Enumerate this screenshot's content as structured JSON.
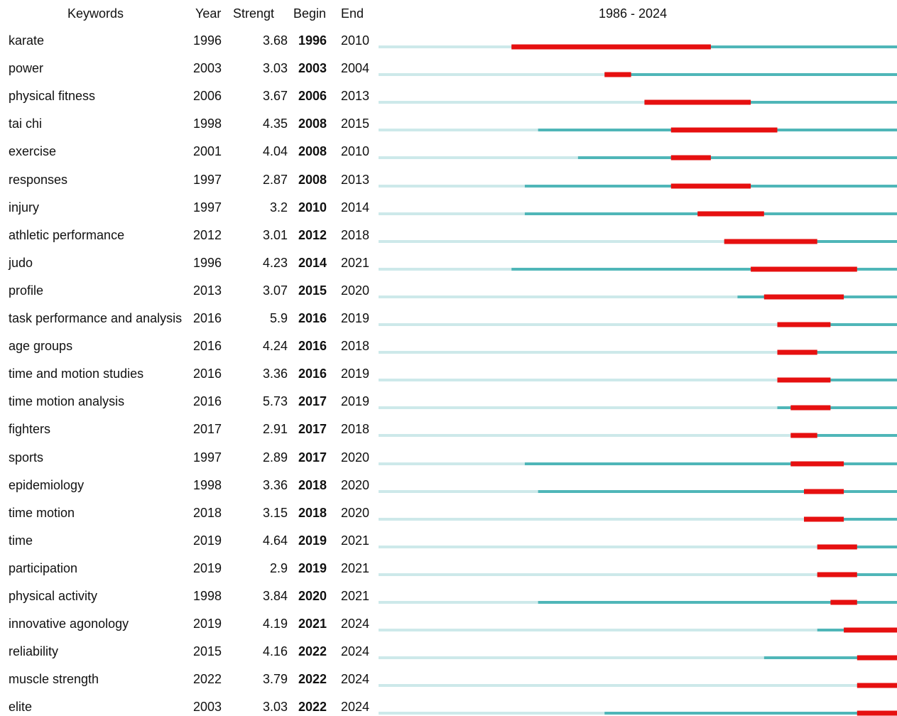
{
  "chart_data": {
    "type": "timeline",
    "headers": {
      "keywords": "Keywords",
      "year": "Year",
      "strength": "Strengt",
      "begin": "Begin",
      "end": "End",
      "range": "1986 - 2024"
    },
    "range": [
      1986,
      2024
    ],
    "colors": {
      "inactive": "#cde9ea",
      "active": "#4fb6b8",
      "burst": "#e61010"
    },
    "rows": [
      {
        "keyword": "karate",
        "year": "1996",
        "strength": "3.68",
        "begin": "1996",
        "end": "2010"
      },
      {
        "keyword": "power",
        "year": "2003",
        "strength": "3.03",
        "begin": "2003",
        "end": "2004"
      },
      {
        "keyword": "physical fitness",
        "year": "2006",
        "strength": "3.67",
        "begin": "2006",
        "end": "2013"
      },
      {
        "keyword": "tai chi",
        "year": "1998",
        "strength": "4.35",
        "begin": "2008",
        "end": "2015"
      },
      {
        "keyword": "exercise",
        "year": "2001",
        "strength": "4.04",
        "begin": "2008",
        "end": "2010"
      },
      {
        "keyword": "responses",
        "year": "1997",
        "strength": "2.87",
        "begin": "2008",
        "end": "2013"
      },
      {
        "keyword": "injury",
        "year": "1997",
        "strength": "3.2",
        "begin": "2010",
        "end": "2014"
      },
      {
        "keyword": "athletic performance",
        "year": "2012",
        "strength": "3.01",
        "begin": "2012",
        "end": "2018"
      },
      {
        "keyword": "judo",
        "year": "1996",
        "strength": "4.23",
        "begin": "2014",
        "end": "2021"
      },
      {
        "keyword": "profile",
        "year": "2013",
        "strength": "3.07",
        "begin": "2015",
        "end": "2020"
      },
      {
        "keyword": "task performance and analysis",
        "year": "2016",
        "strength": "5.9",
        "begin": "2016",
        "end": "2019"
      },
      {
        "keyword": "age groups",
        "year": "2016",
        "strength": "4.24",
        "begin": "2016",
        "end": "2018"
      },
      {
        "keyword": "time and motion studies",
        "year": "2016",
        "strength": "3.36",
        "begin": "2016",
        "end": "2019"
      },
      {
        "keyword": "time motion analysis",
        "year": "2016",
        "strength": "5.73",
        "begin": "2017",
        "end": "2019"
      },
      {
        "keyword": "fighters",
        "year": "2017",
        "strength": "2.91",
        "begin": "2017",
        "end": "2018"
      },
      {
        "keyword": "sports",
        "year": "1997",
        "strength": "2.89",
        "begin": "2017",
        "end": "2020"
      },
      {
        "keyword": "epidemiology",
        "year": "1998",
        "strength": "3.36",
        "begin": "2018",
        "end": "2020"
      },
      {
        "keyword": "time motion",
        "year": "2018",
        "strength": "3.15",
        "begin": "2018",
        "end": "2020"
      },
      {
        "keyword": "time",
        "year": "2019",
        "strength": "4.64",
        "begin": "2019",
        "end": "2021"
      },
      {
        "keyword": "participation",
        "year": "2019",
        "strength": "2.9",
        "begin": "2019",
        "end": "2021"
      },
      {
        "keyword": "physical activity",
        "year": "1998",
        "strength": "3.84",
        "begin": "2020",
        "end": "2021"
      },
      {
        "keyword": "innovative agonology",
        "year": "2019",
        "strength": "4.19",
        "begin": "2021",
        "end": "2024"
      },
      {
        "keyword": "reliability",
        "year": "2015",
        "strength": "4.16",
        "begin": "2022",
        "end": "2024"
      },
      {
        "keyword": "muscle strength",
        "year": "2022",
        "strength": "3.79",
        "begin": "2022",
        "end": "2024"
      },
      {
        "keyword": "elite",
        "year": "2003",
        "strength": "3.03",
        "begin": "2022",
        "end": "2024"
      }
    ]
  }
}
